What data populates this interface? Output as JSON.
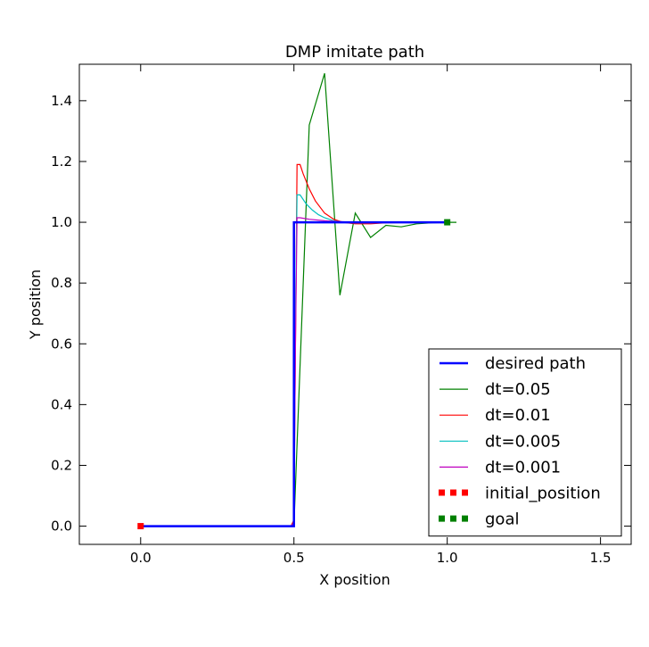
{
  "chart_data": {
    "type": "line",
    "title": "DMP imitate path",
    "xlabel": "X position",
    "ylabel": "Y position",
    "xlim": [
      -0.2,
      1.6
    ],
    "ylim": [
      -0.06,
      1.52
    ],
    "xticks": [
      0.0,
      0.5,
      1.0,
      1.5
    ],
    "xtick_labels": [
      "0.0",
      "0.5",
      "1.0",
      "1.5"
    ],
    "yticks": [
      0.0,
      0.2,
      0.4,
      0.6,
      0.8,
      1.0,
      1.2,
      1.4
    ],
    "ytick_labels": [
      "0.0",
      "0.2",
      "0.4",
      "0.6",
      "0.8",
      "1.0",
      "1.2",
      "1.4"
    ],
    "grid": false,
    "legend_position": "lower right",
    "series": [
      {
        "name": "desired path",
        "color": "#0000ff",
        "style": "line-thick",
        "x": [
          0.0,
          0.5,
          0.5,
          1.0
        ],
        "y": [
          0.0,
          0.0,
          1.0,
          1.0
        ]
      },
      {
        "name": "dt=0.05",
        "color": "#008000",
        "style": "line",
        "x": [
          0.0,
          0.45,
          0.5,
          0.55,
          0.6,
          0.65,
          0.7,
          0.75,
          0.8,
          0.85,
          0.9,
          0.95,
          1.0,
          1.03
        ],
        "y": [
          0.0,
          0.0,
          0.0,
          1.32,
          1.49,
          0.76,
          1.03,
          0.95,
          0.99,
          0.985,
          0.995,
          0.998,
          1.0,
          1.0
        ]
      },
      {
        "name": "dt=0.01",
        "color": "#ff0000",
        "style": "line",
        "x": [
          0.0,
          0.49,
          0.5,
          0.51,
          0.52,
          0.53,
          0.55,
          0.57,
          0.6,
          0.63,
          0.66,
          0.7,
          0.75,
          0.8,
          0.9,
          1.0
        ],
        "y": [
          0.0,
          0.0,
          0.02,
          1.19,
          1.19,
          1.16,
          1.11,
          1.07,
          1.03,
          1.01,
          1.0,
          0.995,
          0.995,
          0.998,
          1.0,
          1.0
        ]
      },
      {
        "name": "dt=0.005",
        "color": "#00bfbf",
        "style": "line",
        "x": [
          0.0,
          0.49,
          0.5,
          0.505,
          0.51,
          0.52,
          0.54,
          0.56,
          0.58,
          0.6,
          0.63,
          0.66,
          0.7,
          0.8,
          0.9,
          1.0
        ],
        "y": [
          0.0,
          0.0,
          0.01,
          0.7,
          1.09,
          1.09,
          1.06,
          1.04,
          1.025,
          1.015,
          1.005,
          1.0,
          0.998,
          0.999,
          1.0,
          1.0
        ]
      },
      {
        "name": "dt=0.001",
        "color": "#bf00bf",
        "style": "line",
        "x": [
          0.0,
          0.49,
          0.5,
          0.505,
          0.51,
          0.52,
          0.55,
          0.6,
          0.65,
          0.7,
          0.8,
          0.9,
          1.0
        ],
        "y": [
          0.0,
          0.0,
          0.01,
          0.6,
          1.015,
          1.015,
          1.01,
          1.005,
          1.002,
          1.0,
          1.0,
          1.0,
          1.0
        ]
      },
      {
        "name": "initial_position",
        "color": "#ff0000",
        "style": "marker",
        "x": [
          0.0
        ],
        "y": [
          0.0
        ]
      },
      {
        "name": "goal",
        "color": "#008000",
        "style": "marker",
        "x": [
          1.0
        ],
        "y": [
          1.0
        ]
      }
    ]
  }
}
